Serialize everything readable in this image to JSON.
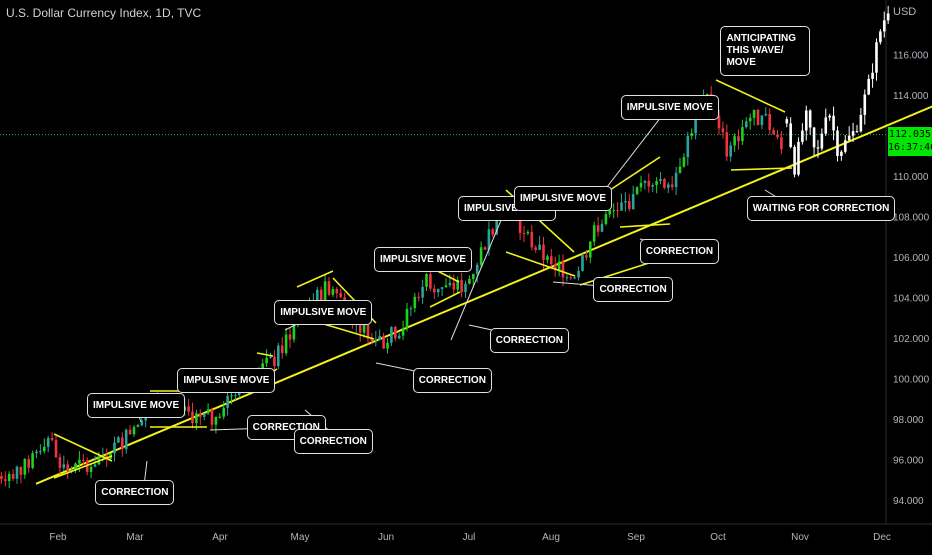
{
  "header": {
    "title": "U.S. Dollar Currency Index, 1D, TVC"
  },
  "axis": {
    "currency": "USD"
  },
  "price_tag": {
    "price": "112.035",
    "countdown": "16:37:46"
  },
  "colors": {
    "up": "#26a69a",
    "up_bright": "#1fd21f",
    "down": "#ef3340",
    "projection": "#ffffff",
    "annotation": "#f2f21a",
    "grid_line": "#00c853",
    "background": "#000000"
  },
  "chart_data": {
    "type": "candlestick",
    "title": "U.S. Dollar Currency Index, 1D, TVC",
    "ylabel": "USD",
    "ylim": [
      93.2,
      119.0
    ],
    "y_ticks": [
      "94.000",
      "96.000",
      "98.000",
      "100.000",
      "102.000",
      "104.000",
      "106.000",
      "108.000",
      "110.000",
      "112.000",
      "114.000",
      "116.000"
    ],
    "x_ticks": [
      "Feb",
      "Mar",
      "Apr",
      "May",
      "Jun",
      "Jul",
      "Aug",
      "Sep",
      "Oct",
      "Nov",
      "Dec"
    ],
    "current_price": 112.035,
    "price_path": [
      {
        "date": "2022-01-10",
        "value": 95.2
      },
      {
        "date": "2022-01-20",
        "value": 95.6
      },
      {
        "date": "2022-01-28",
        "value": 97.2
      },
      {
        "date": "2022-02-04",
        "value": 95.4
      },
      {
        "date": "2022-02-15",
        "value": 96.0
      },
      {
        "date": "2022-02-25",
        "value": 97.0
      },
      {
        "date": "2022-03-07",
        "value": 99.0
      },
      {
        "date": "2022-03-14",
        "value": 98.8
      },
      {
        "date": "2022-03-21",
        "value": 98.2
      },
      {
        "date": "2022-03-29",
        "value": 98.0
      },
      {
        "date": "2022-04-07",
        "value": 99.6
      },
      {
        "date": "2022-04-22",
        "value": 101.0
      },
      {
        "date": "2022-05-02",
        "value": 103.4
      },
      {
        "date": "2022-05-12",
        "value": 104.6
      },
      {
        "date": "2022-05-20",
        "value": 103.0
      },
      {
        "date": "2022-05-31",
        "value": 101.8
      },
      {
        "date": "2022-06-07",
        "value": 102.6
      },
      {
        "date": "2022-06-15",
        "value": 105.0
      },
      {
        "date": "2022-06-22",
        "value": 104.4
      },
      {
        "date": "2022-06-30",
        "value": 104.6
      },
      {
        "date": "2022-07-08",
        "value": 107.0
      },
      {
        "date": "2022-07-14",
        "value": 108.6
      },
      {
        "date": "2022-07-21",
        "value": 107.2
      },
      {
        "date": "2022-08-01",
        "value": 105.6
      },
      {
        "date": "2022-08-10",
        "value": 105.2
      },
      {
        "date": "2022-08-19",
        "value": 107.8
      },
      {
        "date": "2022-08-30",
        "value": 108.8
      },
      {
        "date": "2022-09-07",
        "value": 110.0
      },
      {
        "date": "2022-09-14",
        "value": 109.6
      },
      {
        "date": "2022-09-23",
        "value": 113.0
      },
      {
        "date": "2022-09-28",
        "value": 114.0
      },
      {
        "date": "2022-10-05",
        "value": 111.0
      },
      {
        "date": "2022-10-12",
        "value": 113.0
      },
      {
        "date": "2022-10-20",
        "value": 112.6
      },
      {
        "date": "2022-10-26",
        "value": 111.0
      }
    ],
    "projection_path": [
      {
        "date": "2022-10-27",
        "value": 112.8
      },
      {
        "date": "2022-10-30",
        "value": 110.4
      },
      {
        "date": "2022-11-03",
        "value": 113.0
      },
      {
        "date": "2022-11-07",
        "value": 110.8
      },
      {
        "date": "2022-11-11",
        "value": 113.6
      },
      {
        "date": "2022-11-15",
        "value": 111.2
      },
      {
        "date": "2022-11-21",
        "value": 112.2
      },
      {
        "date": "2022-11-26",
        "value": 114.4
      },
      {
        "date": "2022-11-30",
        "value": 117.0
      },
      {
        "date": "2022-12-04",
        "value": 118.6
      }
    ],
    "trendline": {
      "start": {
        "date": "2022-01-24",
        "value": 94.8
      },
      "end": {
        "date": "2022-12-26",
        "value": 113.8
      }
    },
    "annotations": [
      {
        "label": "IMPULSIVE MOVE",
        "x_date": "2022-03-01",
        "y_value": 98.7
      },
      {
        "label": "CORRECTION",
        "x_date": "2022-03-04",
        "y_value": 94.4
      },
      {
        "label": "IMPULSIVE MOVE",
        "x_date": "2022-04-03",
        "y_value": 99.9
      },
      {
        "label": "CORRECTION",
        "x_date": "2022-04-29",
        "y_value": 97.6
      },
      {
        "label": "IMPULSIVE MOVE",
        "x_date": "2022-05-09",
        "y_value": 103.3
      },
      {
        "label": "CORRECTION",
        "x_date": "2022-05-16",
        "y_value": 96.9
      },
      {
        "label": "IMPULSIVE MOVE",
        "x_date": "2022-06-14",
        "y_value": 105.9
      },
      {
        "label": "CORRECTION",
        "x_date": "2022-06-28",
        "y_value": 99.9
      },
      {
        "label": "IMPULSIVE MOVE",
        "x_date": "2022-07-15",
        "y_value": 108.4
      },
      {
        "label": "CORRECTION",
        "x_date": "2022-07-27",
        "y_value": 101.9
      },
      {
        "label": "IMPULSIVE MOVE",
        "x_date": "2022-08-05",
        "y_value": 108.9
      },
      {
        "label": "CORRECTION",
        "x_date": "2022-09-03",
        "y_value": 104.4
      },
      {
        "label": "IMPULSIVE MOVE",
        "x_date": "2022-09-13",
        "y_value": 113.4
      },
      {
        "label": "CORRECTION",
        "x_date": "2022-09-20",
        "y_value": 106.3
      },
      {
        "label": "ANTICIPATING THIS WAVE/ MOVE",
        "x_date": "2022-10-11",
        "y_value": 116.8
      },
      {
        "label": "WAITING FOR CORRECTION",
        "x_date": "2022-10-30",
        "y_value": 108.4
      }
    ]
  }
}
